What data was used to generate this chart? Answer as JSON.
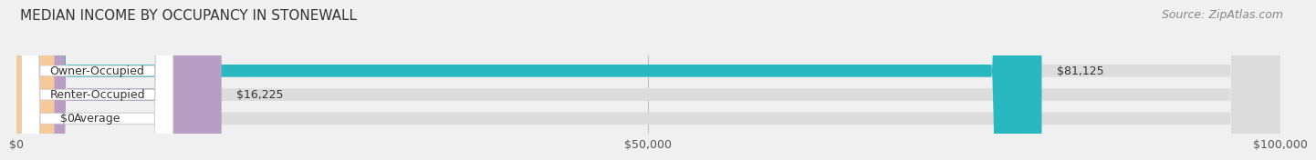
{
  "title": "MEDIAN INCOME BY OCCUPANCY IN STONEWALL",
  "source": "Source: ZipAtlas.com",
  "categories": [
    "Owner-Occupied",
    "Renter-Occupied",
    "Average"
  ],
  "values": [
    81125,
    16225,
    0
  ],
  "bar_colors": [
    "#29b8c0",
    "#b89ec4",
    "#f5c99a"
  ],
  "bar_bg_color": "#dcdcdc",
  "value_labels": [
    "$81,125",
    "$16,225",
    "$0"
  ],
  "xlim": [
    0,
    100000
  ],
  "xticks": [
    0,
    50000,
    100000
  ],
  "xtick_labels": [
    "$0",
    "$50,000",
    "$100,000"
  ],
  "title_fontsize": 11,
  "label_fontsize": 9,
  "tick_fontsize": 9,
  "source_fontsize": 9,
  "bar_height": 0.52,
  "background_color": "#f0f0f0"
}
